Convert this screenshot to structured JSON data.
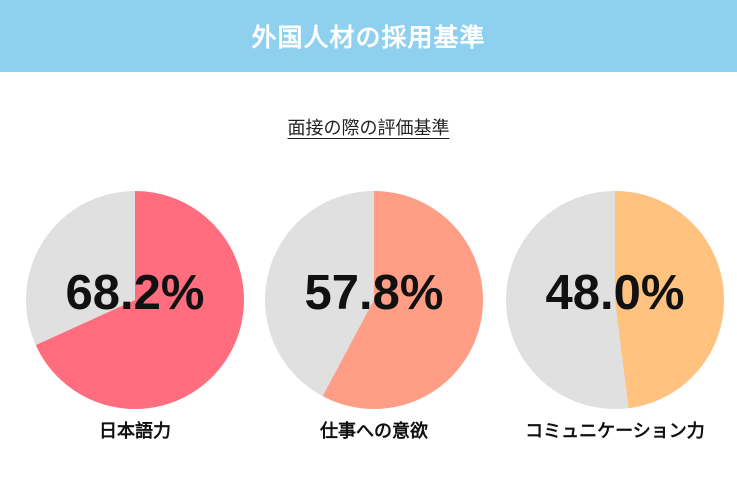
{
  "header": {
    "title": "外国人材の採用基準"
  },
  "subtitle": "面接の際の評価基準",
  "chart_data": {
    "type": "pie",
    "subtitle": "面接の際の評価基準",
    "charts": [
      {
        "category": "日本語力",
        "value": 68.2,
        "label": "68.2%",
        "color": "#ff6d7f",
        "rest_color": "#e0e0e0"
      },
      {
        "category": "仕事への意欲",
        "value": 57.8,
        "label": "57.8%",
        "color": "#ff9d85",
        "rest_color": "#e0e0e0"
      },
      {
        "category": "コミュニケーション力",
        "value": 48.0,
        "label": "48.0%",
        "color": "#ffc27f",
        "rest_color": "#e0e0e0"
      }
    ]
  }
}
